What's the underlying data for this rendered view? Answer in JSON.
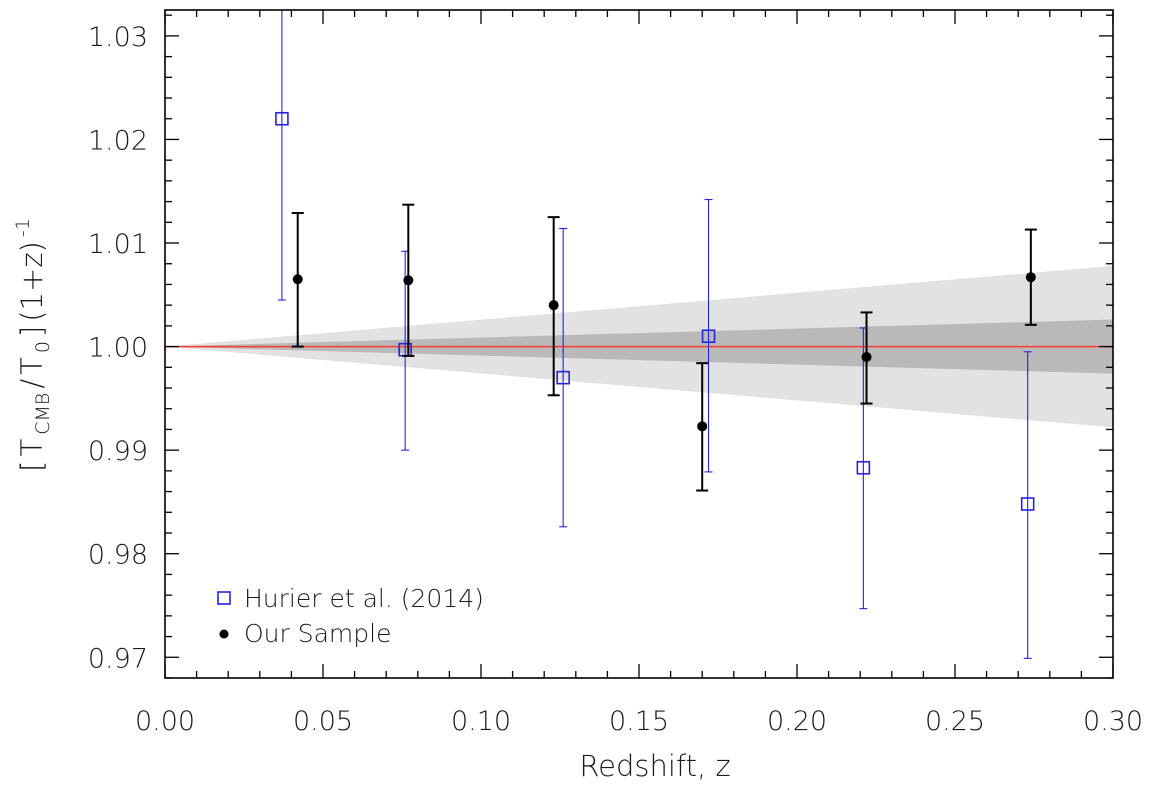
{
  "chart_data": {
    "type": "scatter",
    "xlabel": "Redshift, z",
    "ylabel": {
      "bracket_open": "[",
      "T": "T",
      "T_sub": "CMB",
      "slash": "/",
      "T0": "T",
      "T0_sub": "0",
      "bracket_close": "]",
      "factor": "(1+z)",
      "exponent": "-1"
    },
    "xlim": [
      0.0,
      0.3
    ],
    "ylim": [
      0.968,
      1.0325
    ],
    "x_ticks": [
      "0.00",
      "0.05",
      "0.10",
      "0.15",
      "0.20",
      "0.25",
      "0.30"
    ],
    "x_tick_values": [
      0.0,
      0.05,
      0.1,
      0.15,
      0.2,
      0.25,
      0.3
    ],
    "y_ticks": [
      "0.97",
      "0.98",
      "0.99",
      "1.00",
      "1.01",
      "1.02",
      "1.03"
    ],
    "y_tick_values": [
      0.97,
      0.98,
      0.99,
      1.0,
      1.01,
      1.02,
      1.03
    ],
    "grid": false,
    "legend_position": "bottom-left",
    "reference_line": {
      "y": 1.0,
      "color": "#ff3b30"
    },
    "bands": [
      {
        "slope_halfwidth": 0.026,
        "color": "#e2e2e2"
      },
      {
        "slope_halfwidth": 0.0087,
        "color": "#b9b9b9"
      }
    ],
    "series": [
      {
        "name": "Hurier et al. (2014)",
        "marker": "open-square",
        "color": "#2424e0",
        "x": [
          0.037,
          0.076,
          0.126,
          0.172,
          0.221,
          0.273
        ],
        "y": [
          1.022,
          0.9997,
          0.997,
          1.001,
          0.9883,
          0.9848
        ],
        "err_lo": [
          0.0175,
          0.0097,
          0.0144,
          0.0131,
          0.0136,
          0.0149
        ],
        "err_hi": [
          0.0124,
          0.0095,
          0.0144,
          0.0132,
          0.0135,
          0.0147
        ]
      },
      {
        "name": "Our Sample",
        "marker": "filled-circle",
        "color": "#000000",
        "x": [
          0.042,
          0.077,
          0.123,
          0.17,
          0.222,
          0.274
        ],
        "y": [
          1.0065,
          1.0064,
          1.004,
          0.9923,
          0.999,
          1.0067
        ],
        "err_lo": [
          0.0065,
          0.0073,
          0.0087,
          0.0062,
          0.0045,
          0.0046
        ],
        "err_hi": [
          0.0064,
          0.0073,
          0.0085,
          0.0061,
          0.0043,
          0.0046
        ]
      }
    ]
  }
}
